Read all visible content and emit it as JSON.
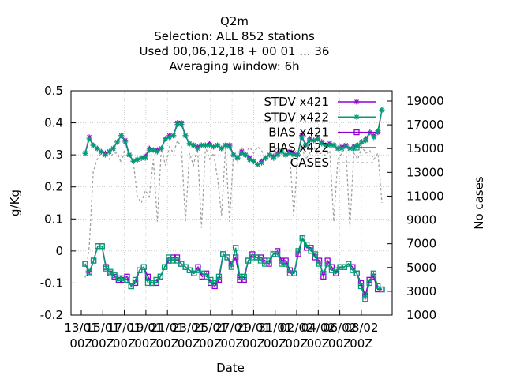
{
  "chart_data": {
    "type": "line",
    "title_lines": [
      "Q2m",
      "Selection: ALL    852 stations",
      "Used  00,06,12,18 + 00 01 ... 36",
      "Averaging window:  6h"
    ],
    "xlabel": "Date",
    "ylabel": "g/Kg",
    "y2label": "No cases",
    "ylim": [
      -0.2,
      0.5
    ],
    "y2lim": [
      1000,
      19000
    ],
    "yticks": [
      "0.5",
      "0.4",
      "0.3",
      "0.2",
      "0.1",
      "0",
      "-0.1",
      "-0.2"
    ],
    "y2ticks": [
      "19000",
      "17000",
      "15000",
      "13000",
      "11000",
      "9000",
      "7000",
      "5000",
      "3000",
      "1000"
    ],
    "xticks_top": [
      "13/01",
      "15/01",
      "17/01",
      "19/01",
      "21/01",
      "23/01",
      "25/01",
      "27/01",
      "29/01",
      "31/01",
      "02/02",
      "04/02",
      "06/02",
      "08/02"
    ],
    "xticks_bottom": [
      "00Z",
      "00Z",
      "00Z",
      "00Z",
      "00Z",
      "00Z",
      "00Z",
      "00Z",
      "00Z",
      "00Z",
      "00Z",
      "00Z",
      "00Z",
      "00Z"
    ],
    "legend_position": "top-right",
    "grid": true,
    "series": [
      {
        "name": "STDV x421",
        "color": "#9400d3",
        "marker": "asterisk",
        "values": [
          0.305,
          0.355,
          0.33,
          0.32,
          0.31,
          0.305,
          0.31,
          0.32,
          0.34,
          0.36,
          0.345,
          0.3,
          0.28,
          0.285,
          0.29,
          0.295,
          0.32,
          0.315,
          0.315,
          0.32,
          0.35,
          0.36,
          0.36,
          0.4,
          0.4,
          0.36,
          0.335,
          0.33,
          0.325,
          0.33,
          0.33,
          0.335,
          0.325,
          0.33,
          0.32,
          0.33,
          0.33,
          0.3,
          0.29,
          0.31,
          0.3,
          0.29,
          0.28,
          0.27,
          0.28,
          0.29,
          0.3,
          0.295,
          0.305,
          0.31,
          0.3,
          0.31,
          0.305,
          0.3,
          0.36,
          0.33,
          0.35,
          0.345,
          0.35,
          0.34,
          0.33,
          0.335,
          0.33,
          0.32,
          0.325,
          0.33,
          0.32,
          0.325,
          0.33,
          0.34,
          0.35,
          0.37,
          0.36,
          0.37,
          0.44
        ]
      },
      {
        "name": "STDV x422",
        "color": "#009e73",
        "marker": "asterisk",
        "values": [
          0.305,
          0.35,
          0.33,
          0.32,
          0.31,
          0.3,
          0.31,
          0.32,
          0.34,
          0.36,
          0.34,
          0.3,
          0.28,
          0.285,
          0.29,
          0.29,
          0.315,
          0.315,
          0.31,
          0.32,
          0.35,
          0.355,
          0.36,
          0.395,
          0.395,
          0.36,
          0.335,
          0.33,
          0.32,
          0.33,
          0.33,
          0.33,
          0.325,
          0.33,
          0.32,
          0.33,
          0.325,
          0.3,
          0.29,
          0.305,
          0.3,
          0.285,
          0.28,
          0.27,
          0.275,
          0.29,
          0.3,
          0.29,
          0.3,
          0.31,
          0.3,
          0.305,
          0.3,
          0.3,
          0.355,
          0.33,
          0.345,
          0.345,
          0.35,
          0.335,
          0.33,
          0.33,
          0.33,
          0.32,
          0.32,
          0.325,
          0.32,
          0.32,
          0.33,
          0.34,
          0.345,
          0.37,
          0.355,
          0.375,
          0.44
        ]
      },
      {
        "name": "BIAS x421",
        "color": "#9400d3",
        "marker": "square",
        "values": [
          -0.04,
          -0.07,
          -0.03,
          0.015,
          0.015,
          -0.05,
          -0.07,
          -0.08,
          -0.09,
          -0.09,
          -0.08,
          -0.11,
          -0.1,
          -0.06,
          -0.05,
          -0.08,
          -0.1,
          -0.1,
          -0.08,
          -0.05,
          -0.03,
          -0.02,
          -0.02,
          -0.04,
          -0.05,
          -0.06,
          -0.07,
          -0.05,
          -0.08,
          -0.07,
          -0.1,
          -0.11,
          -0.09,
          -0.01,
          -0.02,
          -0.04,
          -0.02,
          -0.09,
          -0.09,
          -0.03,
          -0.01,
          -0.02,
          -0.02,
          -0.03,
          -0.04,
          -0.01,
          0,
          -0.03,
          -0.03,
          -0.06,
          -0.07,
          -0.01,
          0.04,
          0.01,
          0.01,
          -0.02,
          -0.03,
          -0.08,
          -0.03,
          -0.05,
          -0.07,
          -0.05,
          -0.05,
          -0.04,
          -0.05,
          -0.07,
          -0.1,
          -0.14,
          -0.09,
          -0.08,
          -0.12,
          -0.12
        ]
      },
      {
        "name": "BIAS x422",
        "color": "#009e73",
        "marker": "square",
        "values": [
          -0.04,
          -0.065,
          -0.03,
          0.015,
          0.015,
          -0.055,
          -0.065,
          -0.075,
          -0.085,
          -0.085,
          -0.09,
          -0.11,
          -0.09,
          -0.06,
          -0.05,
          -0.1,
          -0.1,
          -0.09,
          -0.08,
          -0.05,
          -0.02,
          -0.03,
          -0.03,
          -0.04,
          -0.05,
          -0.06,
          -0.07,
          -0.06,
          -0.07,
          -0.08,
          -0.09,
          -0.1,
          -0.08,
          -0.01,
          -0.02,
          -0.05,
          0.01,
          -0.08,
          -0.08,
          -0.03,
          -0.02,
          -0.02,
          -0.03,
          -0.04,
          -0.03,
          -0.01,
          -0.01,
          -0.04,
          -0.04,
          -0.07,
          -0.07,
          0,
          0.04,
          0.02,
          0,
          -0.01,
          -0.04,
          -0.07,
          -0.04,
          -0.06,
          -0.06,
          -0.05,
          -0.05,
          -0.04,
          -0.06,
          -0.07,
          -0.11,
          -0.15,
          -0.1,
          -0.07,
          -0.11,
          -0.12
        ]
      },
      {
        "name": "CASES",
        "color": "#a0a0a0",
        "axis": "y2",
        "dashed": true,
        "values": [
          4000,
          6500,
          12500,
          13500,
          14000,
          14000,
          13500,
          14000,
          14000,
          13200,
          14500,
          14000,
          13300,
          10500,
          10000,
          11000,
          10500,
          13500,
          8500,
          14500,
          13000,
          14500,
          14000,
          15000,
          14500,
          8500,
          14000,
          13000,
          14500,
          8000,
          14500,
          13500,
          14000,
          12000,
          9000,
          14500,
          8500,
          14000,
          13200,
          14500,
          14000,
          14500,
          14000,
          14500,
          14200,
          13500,
          14000,
          13800,
          14500,
          14200,
          13800,
          14000,
          9000,
          13800,
          14500,
          13500,
          14000,
          14500,
          13900,
          14000,
          13800,
          14200,
          8500,
          13500,
          14000,
          14500,
          8000,
          14000,
          13500,
          14500,
          14000,
          14200,
          13500,
          14000,
          10000
        ]
      }
    ]
  }
}
